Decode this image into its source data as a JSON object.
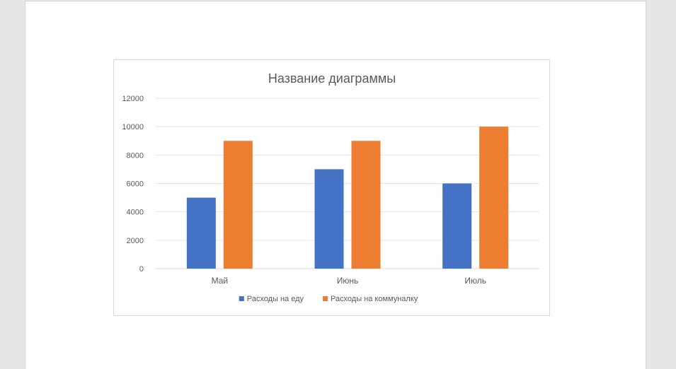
{
  "chart_data": {
    "type": "bar",
    "title": "Название диаграммы",
    "categories": [
      "Май",
      "Июнь",
      "Июль"
    ],
    "series": [
      {
        "name": "Расходы на еду",
        "values": [
          5000,
          7000,
          6000
        ],
        "color": "#4472c4"
      },
      {
        "name": "Расходы на коммуналку",
        "values": [
          9000,
          9000,
          10000
        ],
        "color": "#ed7d31"
      }
    ],
    "yticks": [
      "0",
      "2000",
      "4000",
      "6000",
      "8000",
      "10000",
      "12000"
    ],
    "ylim": [
      0,
      12000
    ],
    "grid": true,
    "legend_position": "bottom"
  }
}
